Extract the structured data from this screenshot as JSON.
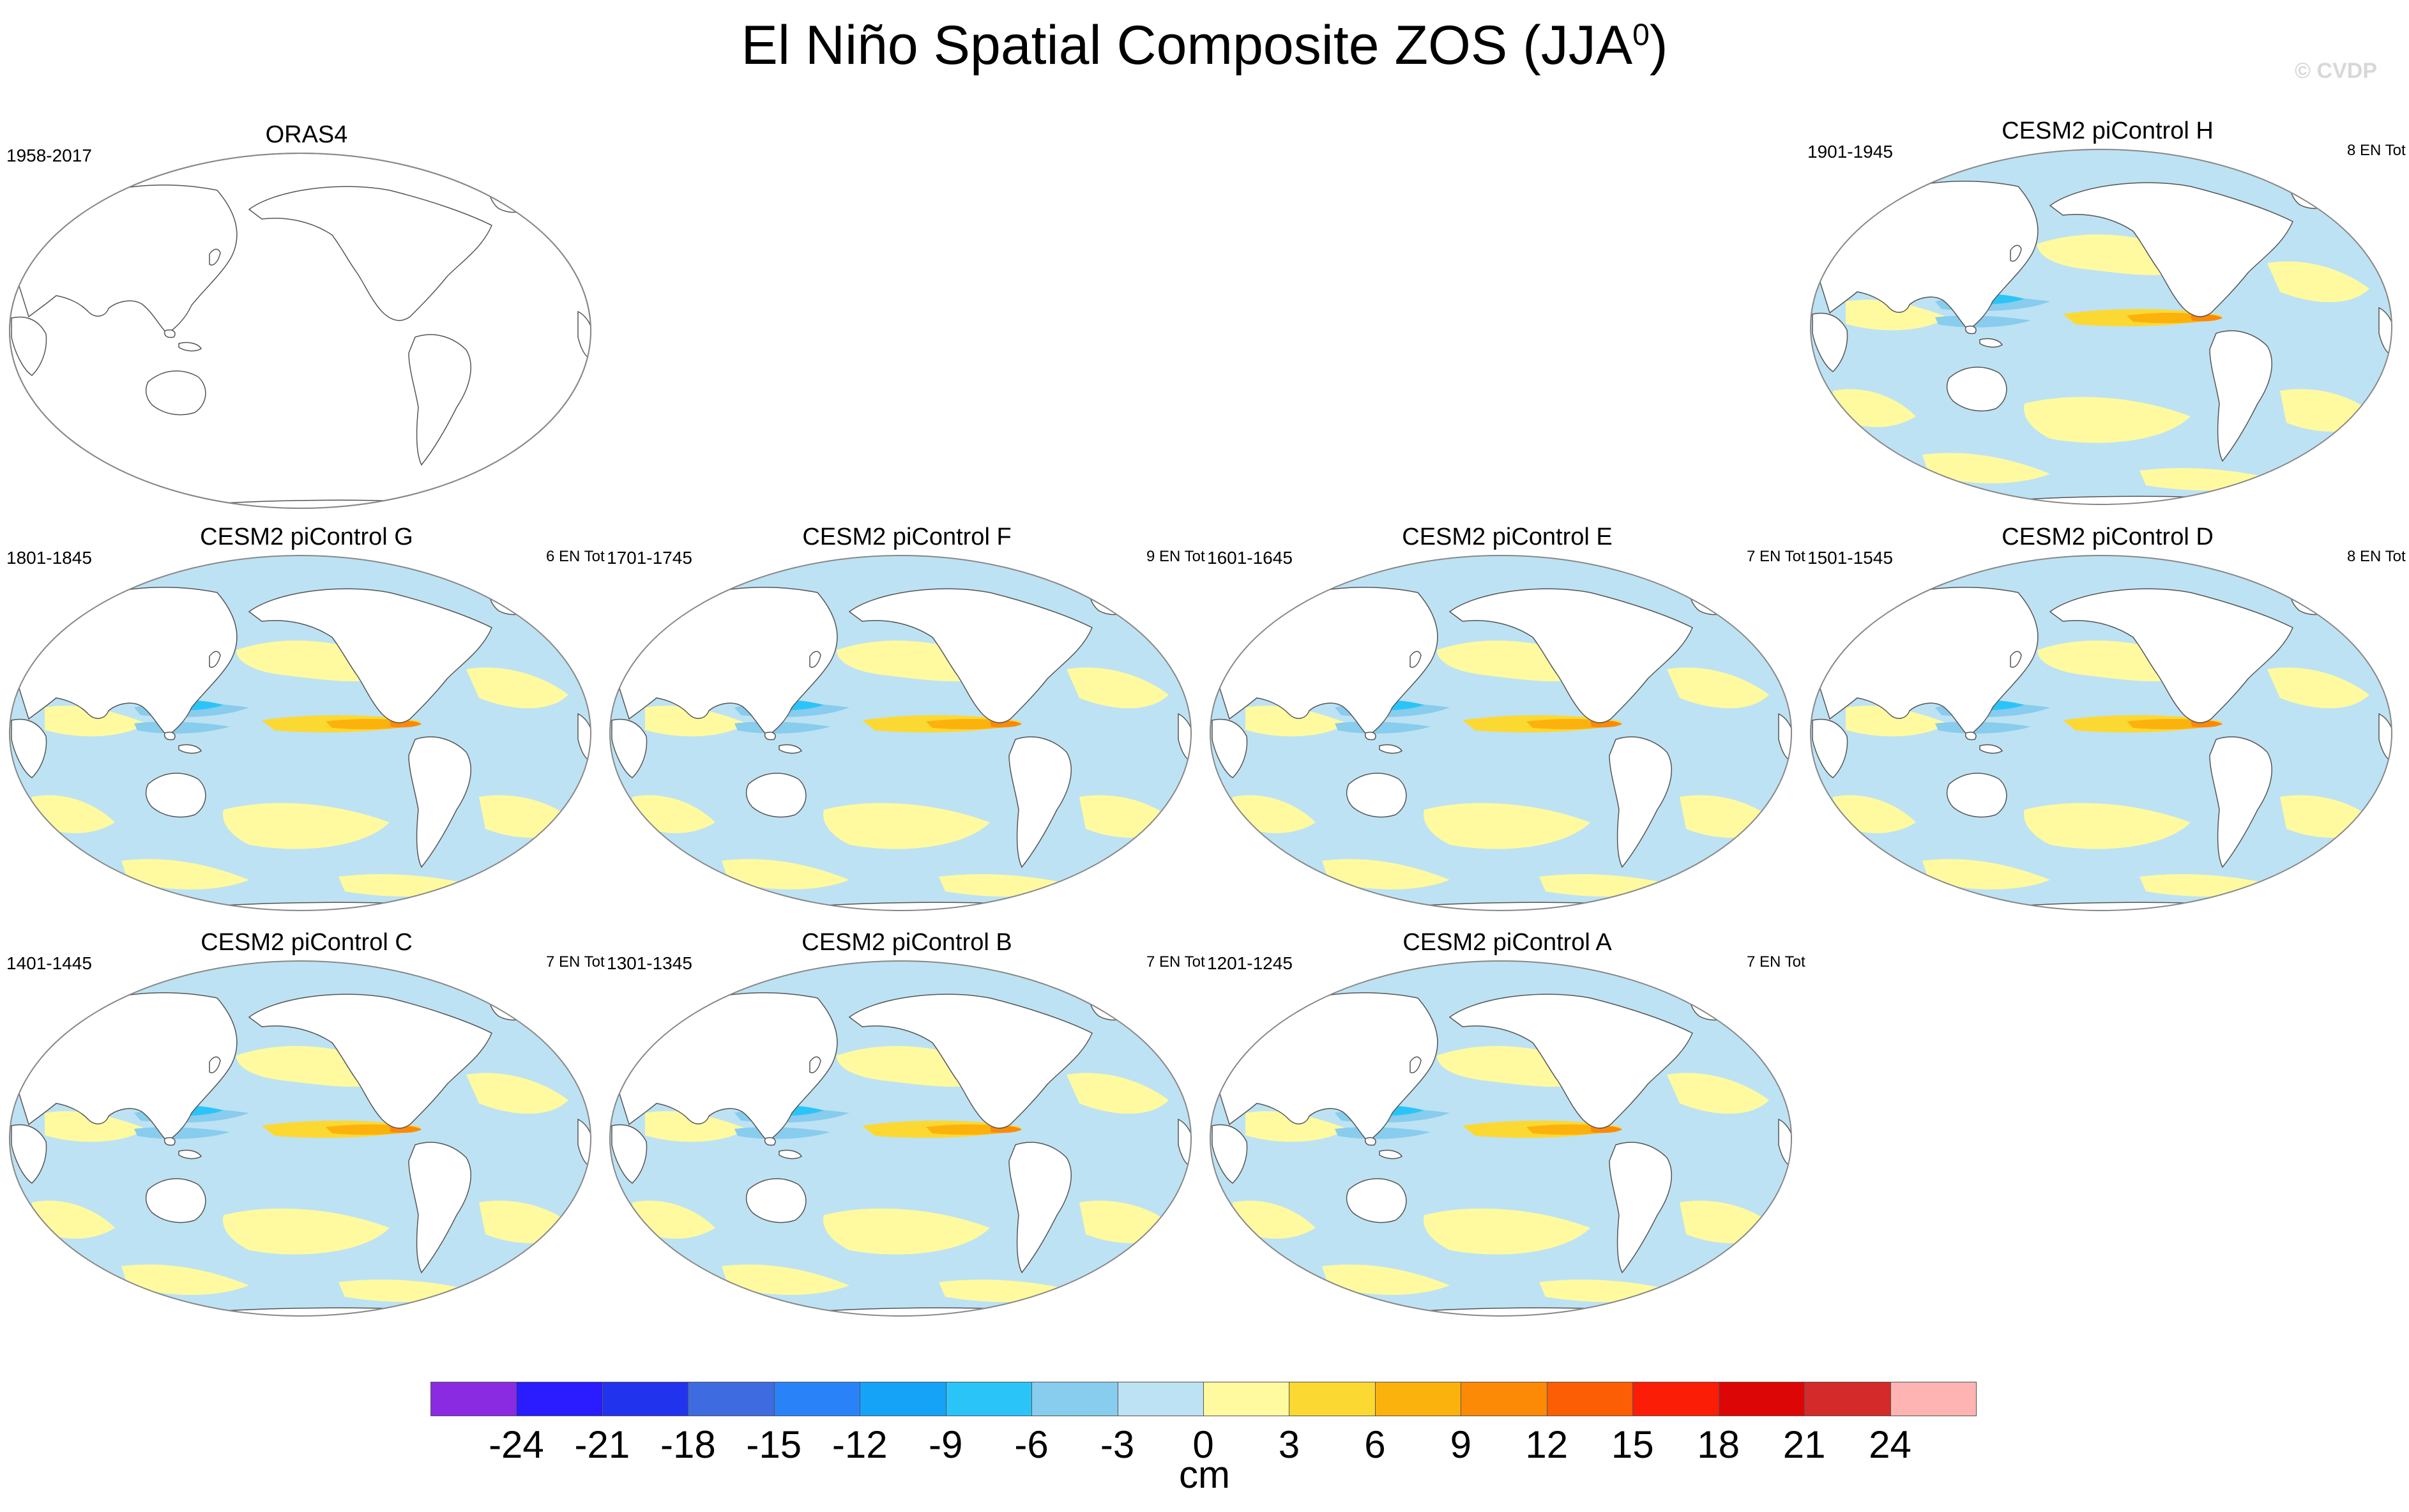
{
  "title_main": "El Niño Spatial Composite ZOS (JJA",
  "title_sup": "0",
  "title_close": ")",
  "copyright": "© CVDP",
  "panels": {
    "orasa": {
      "title": "ORAS4",
      "left": "1958-2017",
      "right": ""
    },
    "h": {
      "title": "CESM2 piControl H",
      "left": "1901-1945",
      "right": "8 EN Tot"
    },
    "g": {
      "title": "CESM2 piControl G",
      "left": "1801-1845",
      "right": "6 EN Tot"
    },
    "f": {
      "title": "CESM2 piControl F",
      "left": "1701-1745",
      "right": "9 EN Tot"
    },
    "e": {
      "title": "CESM2 piControl E",
      "left": "1601-1645",
      "right": "7 EN Tot"
    },
    "d": {
      "title": "CESM2 piControl D",
      "left": "1501-1545",
      "right": "8 EN Tot"
    },
    "c": {
      "title": "CESM2 piControl C",
      "left": "1401-1445",
      "right": "7 EN Tot"
    },
    "b": {
      "title": "CESM2 piControl B",
      "left": "1301-1345",
      "right": "7 EN Tot"
    },
    "a": {
      "title": "CESM2 piControl A",
      "left": "1201-1245",
      "right": "7 EN Tot"
    }
  },
  "colorbar": {
    "unit": "cm",
    "labels": [
      "-24",
      "-21",
      "-18",
      "-15",
      "-12",
      "-9",
      "-6",
      "-3",
      "0",
      "3",
      "6",
      "9",
      "12",
      "15",
      "18",
      "21",
      "24"
    ],
    "colors": [
      "#8a2be2",
      "#2b1bff",
      "#2233ee",
      "#3f6be0",
      "#2a82f8",
      "#15a3f8",
      "#2bc4f8",
      "#88ccee",
      "#bde2f3",
      "#fffaa0",
      "#fcd832",
      "#fcb20c",
      "#fc8a06",
      "#fc5e06",
      "#fc1d06",
      "#dd0606",
      "#d42a2a",
      "#ffb4b4"
    ]
  }
}
